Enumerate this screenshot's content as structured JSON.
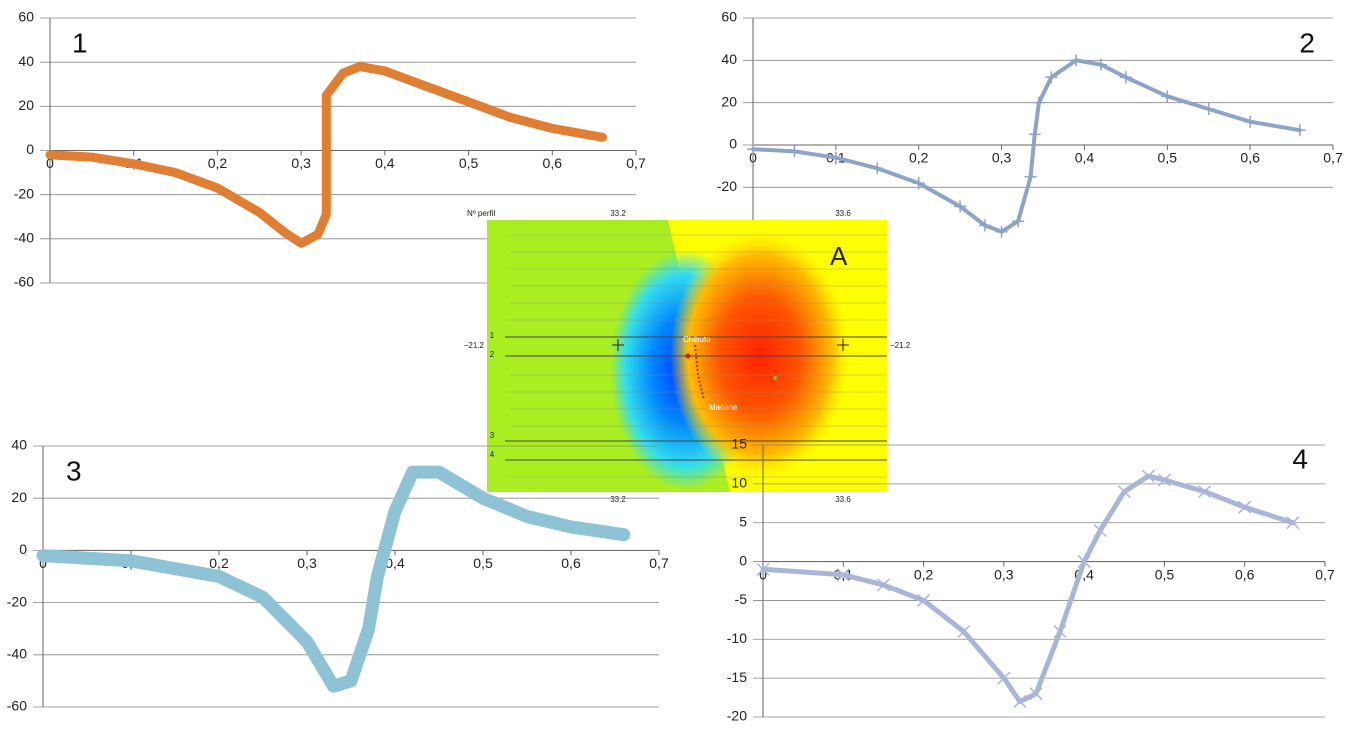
{
  "chart_data": [
    {
      "type": "line",
      "title": "1",
      "color": "#e07f33",
      "line_width": 9,
      "marker": "none",
      "x": [
        0,
        0.05,
        0.1,
        0.15,
        0.2,
        0.25,
        0.28,
        0.3,
        0.32,
        0.33,
        0.33,
        0.35,
        0.37,
        0.4,
        0.45,
        0.5,
        0.55,
        0.6,
        0.66
      ],
      "values": [
        -2,
        -3,
        -6,
        -10,
        -17,
        -28,
        -37,
        -42,
        -38,
        -29,
        25,
        35,
        38,
        36,
        29,
        22,
        15,
        10,
        6
      ],
      "xlim": [
        0,
        0.7
      ],
      "ylim": [
        -60,
        60
      ],
      "yticks": [
        -60,
        -40,
        -20,
        0,
        20,
        40,
        60
      ],
      "xticks": [
        0,
        {
          "value": 0.1,
          "label": "0,1"
        },
        {
          "value": 0.2,
          "label": "0,2"
        },
        {
          "value": 0.3,
          "label": "0,3"
        },
        {
          "value": 0.4,
          "label": "0,4"
        },
        {
          "value": 0.5,
          "label": "0,5"
        },
        {
          "value": 0.6,
          "label": "0,6"
        },
        {
          "value": 0.7,
          "label": "0,7"
        }
      ],
      "grid": true
    },
    {
      "type": "line",
      "title": "2",
      "color": "#8da3c8",
      "line_width": 4,
      "marker": "plus",
      "x": [
        0,
        0.05,
        0.1,
        0.15,
        0.2,
        0.25,
        0.28,
        0.3,
        0.32,
        0.335,
        0.34,
        0.345,
        0.36,
        0.39,
        0.42,
        0.45,
        0.5,
        0.55,
        0.6,
        0.66
      ],
      "values": [
        -2,
        -3,
        -6,
        -11,
        -18,
        -29,
        -38,
        -41,
        -36,
        -15,
        5,
        20,
        32,
        40,
        38,
        32,
        23,
        17,
        11,
        7
      ],
      "xlim": [
        0,
        0.7
      ],
      "ylim": [
        -60,
        60
      ],
      "yticks": [
        -20,
        0,
        20,
        40,
        60
      ],
      "xticks": [
        0,
        {
          "value": 0.1,
          "label": "0,1"
        },
        {
          "value": 0.2,
          "label": "0,2"
        },
        {
          "value": 0.3,
          "label": "0,3"
        },
        {
          "value": 0.4,
          "label": "0,4"
        },
        {
          "value": 0.5,
          "label": "0,5"
        },
        {
          "value": 0.6,
          "label": "0,6"
        },
        {
          "value": 0.7,
          "label": "0,7"
        }
      ],
      "grid": true
    },
    {
      "type": "line",
      "title": "3",
      "color": "#8ec3d6",
      "line_width": 13,
      "marker": "none",
      "x": [
        0,
        0.1,
        0.2,
        0.25,
        0.3,
        0.33,
        0.35,
        0.37,
        0.38,
        0.4,
        0.42,
        0.45,
        0.5,
        0.55,
        0.6,
        0.66
      ],
      "values": [
        -2,
        -4,
        -10,
        -18,
        -35,
        -52,
        -50,
        -30,
        -10,
        15,
        30,
        30,
        20,
        13,
        9,
        6
      ],
      "xlim": [
        0,
        0.7
      ],
      "ylim": [
        -60,
        40
      ],
      "yticks": [
        -60,
        -40,
        -20,
        0,
        20,
        40
      ],
      "xticks": [
        0,
        {
          "value": 0.1,
          "label": "0,1"
        },
        {
          "value": 0.2,
          "label": "0,2"
        },
        {
          "value": 0.3,
          "label": "0,3"
        },
        {
          "value": 0.4,
          "label": "0,4"
        },
        {
          "value": 0.5,
          "label": "0,5"
        },
        {
          "value": 0.6,
          "label": "0,6"
        },
        {
          "value": 0.7,
          "label": "0,7"
        }
      ],
      "grid": true
    },
    {
      "type": "line",
      "title": "4",
      "color": "#a9b6da",
      "line_width": 5,
      "marker": "cross",
      "x": [
        0,
        0.1,
        0.15,
        0.2,
        0.25,
        0.3,
        0.32,
        0.34,
        0.37,
        0.4,
        0.42,
        0.45,
        0.48,
        0.5,
        0.55,
        0.6,
        0.66
      ],
      "values": [
        -1,
        -1.7,
        -3,
        -5,
        -9,
        -15,
        -18,
        -17,
        -9,
        0,
        4,
        9,
        11,
        10.5,
        9,
        7,
        5
      ],
      "xlim": [
        0,
        0.7
      ],
      "ylim": [
        -20,
        15
      ],
      "yticks": [
        -20,
        -15,
        -10,
        -5,
        0,
        5,
        10,
        15
      ],
      "xticks": [
        0,
        {
          "value": 0.1,
          "label": "0,1"
        },
        {
          "value": 0.2,
          "label": "0,2"
        },
        {
          "value": 0.3,
          "label": "0,3"
        },
        {
          "value": 0.4,
          "label": "0,4"
        },
        {
          "value": 0.5,
          "label": "0,5"
        },
        {
          "value": 0.6,
          "label": "0,6"
        },
        {
          "value": 0.7,
          "label": "0,7"
        }
      ],
      "grid": true
    }
  ],
  "map": {
    "corner_label": "A",
    "header": "Nº perfil",
    "lon_ticks": [
      "33.2",
      "33.6"
    ],
    "lat_tick": "−21.2",
    "profiles": [
      "1",
      "2",
      "3",
      "4"
    ],
    "places": [
      "Chibuto",
      "Macone"
    ]
  }
}
